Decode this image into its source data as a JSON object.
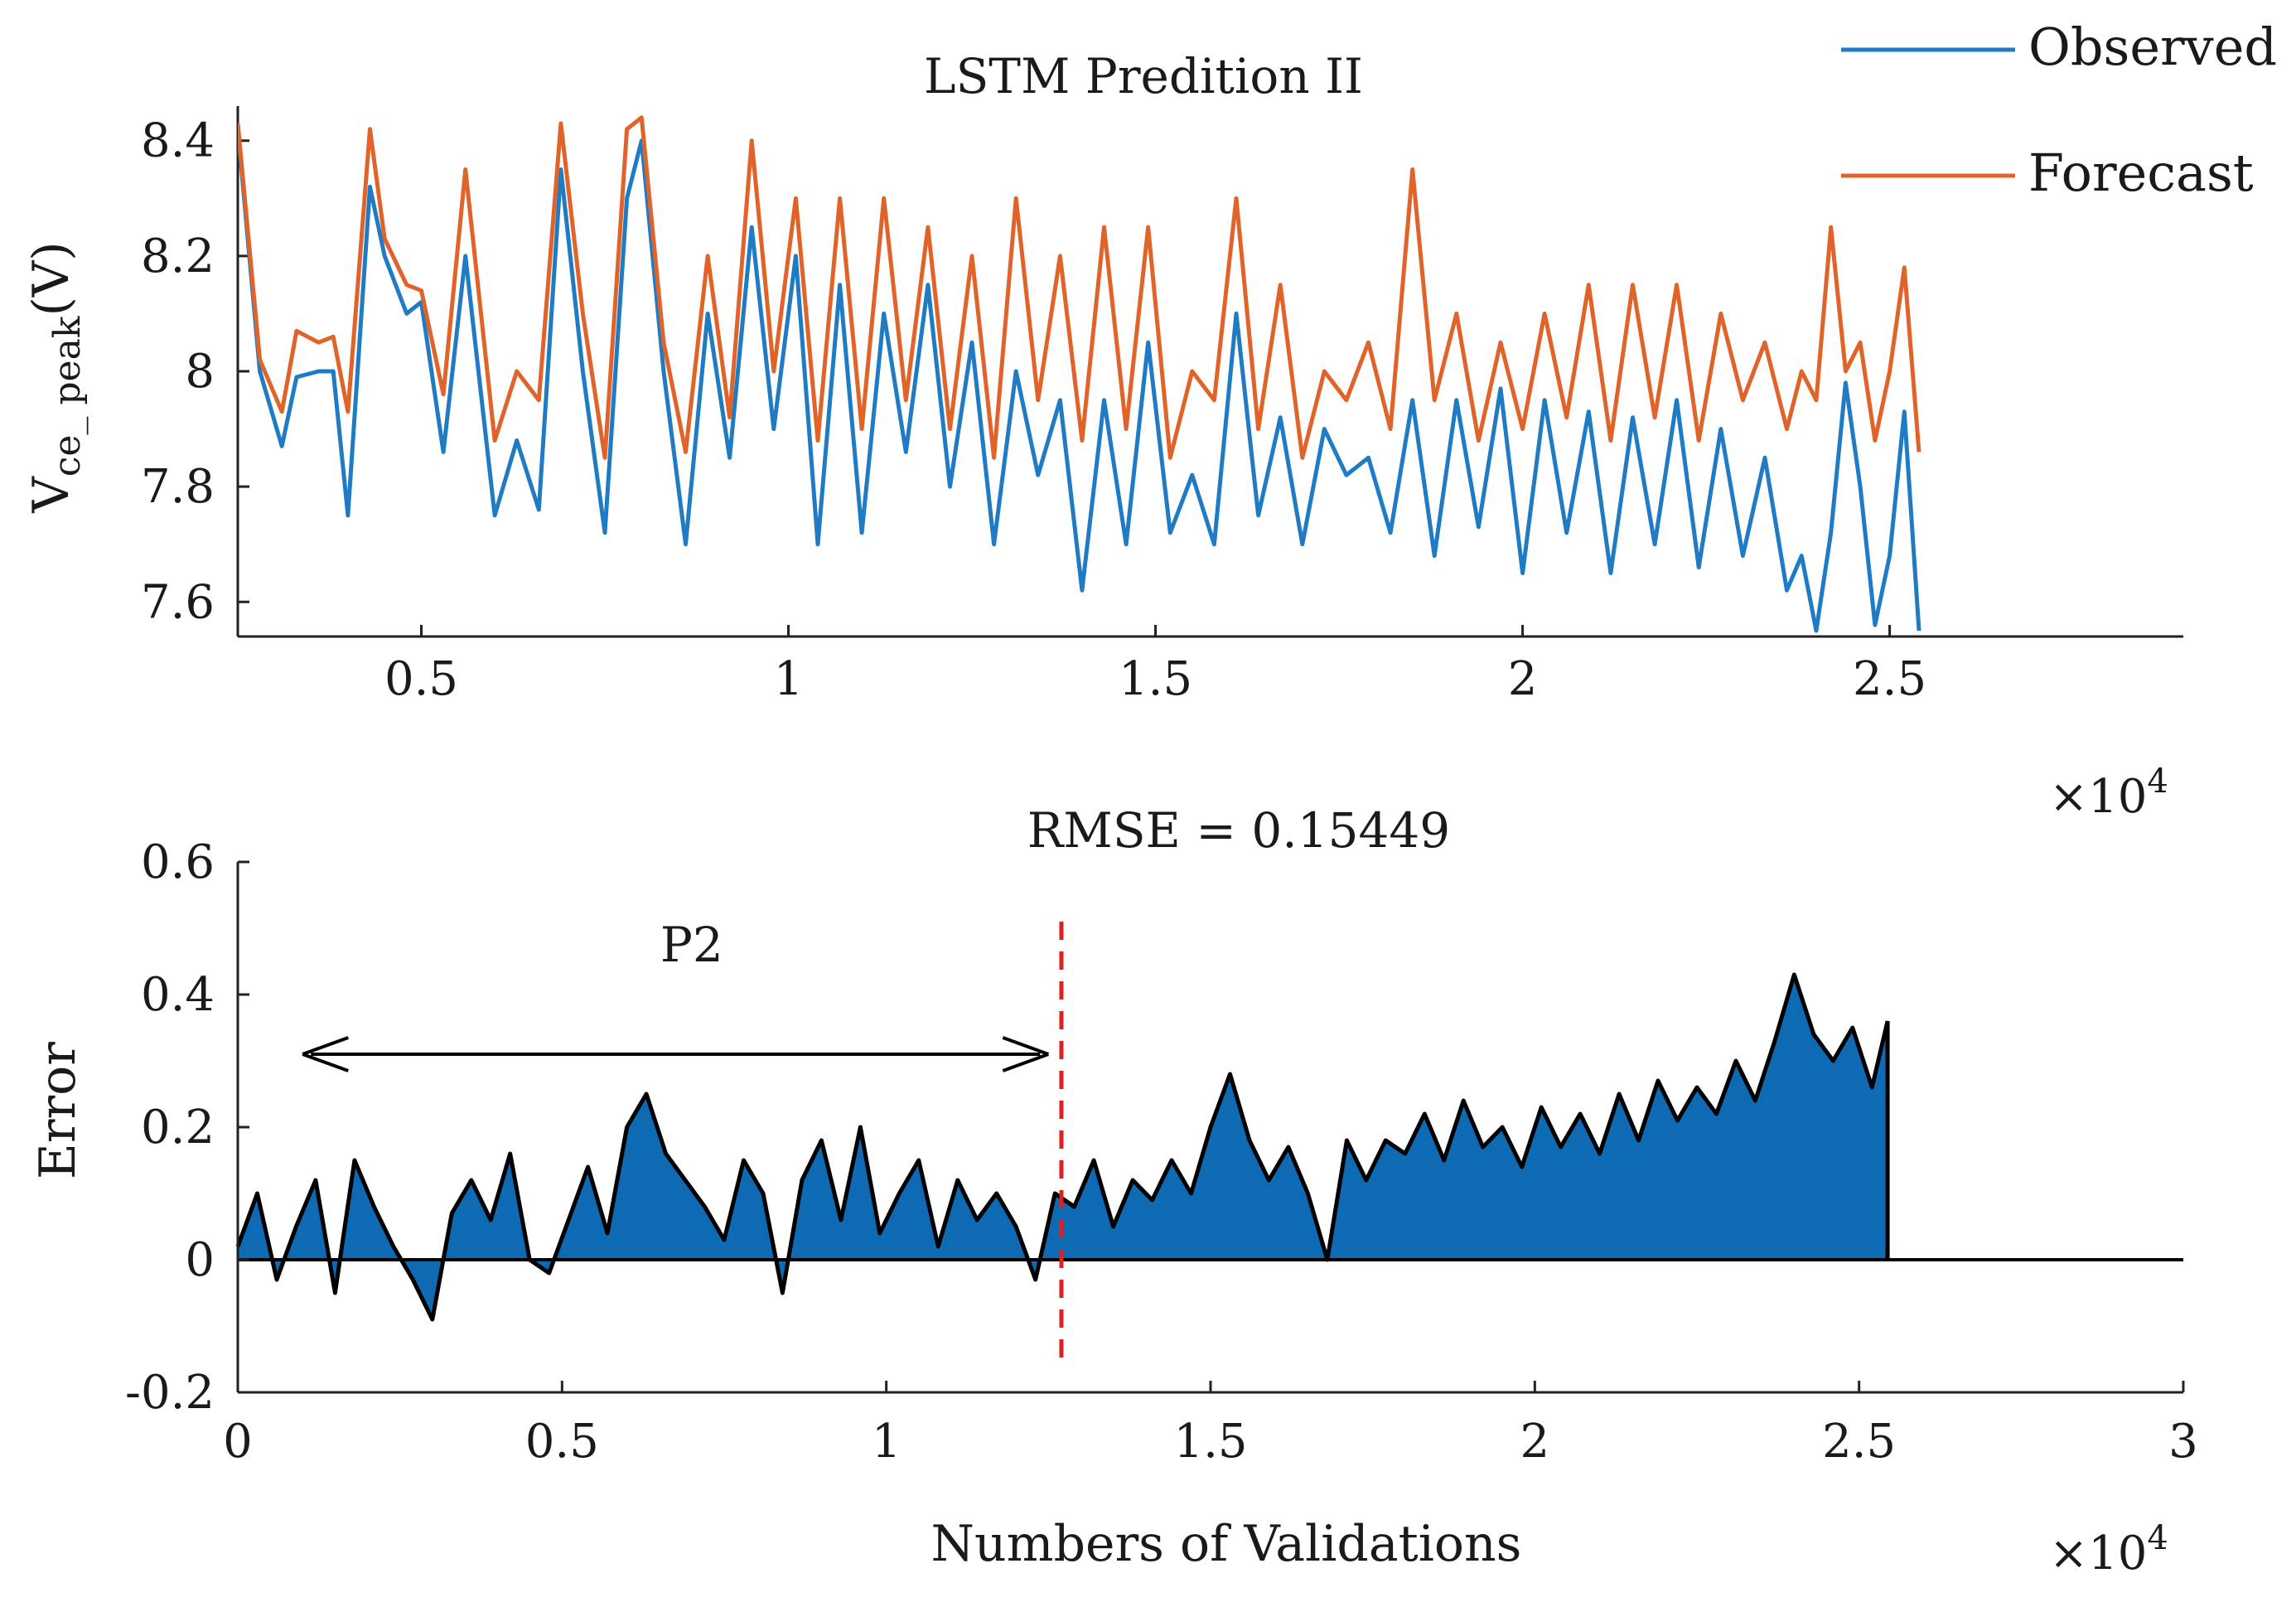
{
  "chart_data": [
    {
      "type": "line",
      "title": "LSTM Predition II",
      "xlabel": "",
      "ylabel": "V_ce_peak(V)",
      "ylabel_main": "V",
      "ylabel_sub": "ce_ peak",
      "ylabel_unit": "(V)",
      "xlim": [
        2500,
        29000
      ],
      "ylim": [
        7.54,
        8.46
      ],
      "xticks": [
        5000,
        10000,
        15000,
        20000,
        25000
      ],
      "xtick_labels": [
        "0.5",
        "1",
        "1.5",
        "2",
        "2.5"
      ],
      "yticks": [
        7.6,
        7.8,
        8.0,
        8.2,
        8.4
      ],
      "ytick_labels": [
        "7.6",
        "7.8",
        "8",
        "8.2",
        "8.4"
      ],
      "x_multiplier": "×10",
      "x_multiplier_exp": "4",
      "legend": [
        "Observed",
        "Forecast"
      ],
      "legend_position": "top-right",
      "colors": {
        "observed": "#1f7bc4",
        "forecast": "#e0632a"
      },
      "x": [
        2500,
        2800,
        3100,
        3300,
        3600,
        3800,
        4000,
        4300,
        4500,
        4800,
        5000,
        5300,
        5600,
        6000,
        6300,
        6600,
        6900,
        7200,
        7500,
        7800,
        8000,
        8300,
        8600,
        8900,
        9200,
        9500,
        9800,
        10100,
        10400,
        10700,
        11000,
        11300,
        11600,
        11900,
        12200,
        12500,
        12800,
        13100,
        13400,
        13700,
        14000,
        14300,
        14600,
        14900,
        15200,
        15500,
        15800,
        16100,
        16400,
        16700,
        17000,
        17300,
        17600,
        17900,
        18200,
        18500,
        18800,
        19100,
        19400,
        19700,
        20000,
        20300,
        20600,
        20900,
        21200,
        21500,
        21800,
        22100,
        22400,
        22700,
        23000,
        23300,
        23600,
        23800,
        24000,
        24200,
        24400,
        24600,
        24800,
        25000,
        25200,
        25400
      ],
      "series": [
        {
          "name": "Observed",
          "values": [
            8.42,
            8.0,
            7.87,
            7.99,
            8.0,
            8.0,
            7.75,
            8.32,
            8.2,
            8.1,
            8.12,
            7.86,
            8.2,
            7.75,
            7.88,
            7.76,
            8.35,
            8.0,
            7.72,
            8.3,
            8.4,
            8.0,
            7.7,
            8.1,
            7.85,
            8.25,
            7.9,
            8.2,
            7.7,
            8.15,
            7.72,
            8.1,
            7.86,
            8.15,
            7.8,
            8.05,
            7.7,
            8.0,
            7.82,
            7.95,
            7.62,
            7.95,
            7.7,
            8.05,
            7.72,
            7.82,
            7.7,
            8.1,
            7.75,
            7.92,
            7.7,
            7.9,
            7.82,
            7.85,
            7.72,
            7.95,
            7.68,
            7.95,
            7.73,
            7.97,
            7.65,
            7.95,
            7.72,
            7.93,
            7.65,
            7.92,
            7.7,
            7.95,
            7.66,
            7.9,
            7.68,
            7.85,
            7.62,
            7.68,
            7.55,
            7.72,
            7.98,
            7.8,
            7.56,
            7.68,
            7.93,
            7.55
          ]
        },
        {
          "name": "Forecast",
          "values": [
            8.43,
            8.02,
            7.93,
            8.07,
            8.05,
            8.06,
            7.93,
            8.42,
            8.23,
            8.15,
            8.14,
            7.96,
            8.35,
            7.88,
            8.0,
            7.95,
            8.43,
            8.1,
            7.85,
            8.42,
            8.44,
            8.05,
            7.86,
            8.2,
            7.92,
            8.4,
            8.0,
            8.3,
            7.88,
            8.3,
            7.9,
            8.3,
            7.95,
            8.25,
            7.9,
            8.2,
            7.85,
            8.3,
            7.95,
            8.2,
            7.88,
            8.25,
            7.9,
            8.25,
            7.85,
            8.0,
            7.95,
            8.3,
            7.9,
            8.15,
            7.85,
            8.0,
            7.95,
            8.05,
            7.9,
            8.35,
            7.95,
            8.1,
            7.88,
            8.05,
            7.9,
            8.1,
            7.92,
            8.15,
            7.88,
            8.15,
            7.92,
            8.15,
            7.88,
            8.1,
            7.95,
            8.05,
            7.9,
            8.0,
            7.95,
            8.25,
            8.0,
            8.05,
            7.88,
            8.0,
            8.18,
            7.86
          ]
        }
      ]
    },
    {
      "type": "area",
      "title": "RMSE = 0.15449",
      "xlabel": "Numbers of Validations",
      "ylabel": "Error",
      "xlim": [
        0,
        30000
      ],
      "ylim": [
        -0.2,
        0.6
      ],
      "xticks": [
        0,
        5000,
        10000,
        15000,
        20000,
        25000,
        30000
      ],
      "xtick_labels": [
        "0",
        "0.5",
        "1",
        "1.5",
        "2",
        "2.5",
        "3"
      ],
      "yticks": [
        -0.2,
        0,
        0.2,
        0.4,
        0.6
      ],
      "ytick_labels": [
        "-0.2",
        "0",
        "0.2",
        "0.4",
        "0.6"
      ],
      "x_multiplier": "×10",
      "x_multiplier_exp": "4",
      "fill_color": "#0f6ab4",
      "line_color": "#000000",
      "annotation": {
        "label": "P2",
        "arrow_x_start": 1000,
        "arrow_x_end": 12500,
        "arrow_y": 0.31,
        "label_x": 7000,
        "label_y": 0.45
      },
      "divider": {
        "x": 12700,
        "y_start": -0.16,
        "y_end": 0.51,
        "color": "#e02020"
      },
      "x": [
        0,
        300,
        600,
        900,
        1200,
        1500,
        1800,
        2100,
        2400,
        2700,
        3000,
        3300,
        3600,
        3900,
        4200,
        4500,
        4800,
        5100,
        5400,
        5700,
        6000,
        6300,
        6600,
        6900,
        7200,
        7500,
        7800,
        8100,
        8400,
        8700,
        9000,
        9300,
        9600,
        9900,
        10200,
        10500,
        10800,
        11100,
        11400,
        11700,
        12000,
        12300,
        12600,
        12900,
        13200,
        13500,
        13800,
        14100,
        14400,
        14700,
        15000,
        15300,
        15600,
        15900,
        16200,
        16500,
        16800,
        17100,
        17400,
        17700,
        18000,
        18300,
        18600,
        18900,
        19200,
        19500,
        19800,
        20100,
        20400,
        20700,
        21000,
        21300,
        21600,
        21900,
        22200,
        22500,
        22800,
        23100,
        23400,
        23700,
        24000,
        24300,
        24600,
        24900,
        25200,
        25440
      ],
      "values": [
        0.02,
        0.1,
        -0.03,
        0.05,
        0.12,
        -0.05,
        0.15,
        0.08,
        0.02,
        -0.03,
        -0.09,
        0.07,
        0.12,
        0.06,
        0.16,
        0.0,
        -0.02,
        0.06,
        0.14,
        0.04,
        0.2,
        0.25,
        0.16,
        0.12,
        0.08,
        0.03,
        0.15,
        0.1,
        -0.05,
        0.12,
        0.18,
        0.06,
        0.2,
        0.04,
        0.1,
        0.15,
        0.02,
        0.12,
        0.06,
        0.1,
        0.05,
        -0.03,
        0.1,
        0.08,
        0.15,
        0.05,
        0.12,
        0.09,
        0.15,
        0.1,
        0.2,
        0.28,
        0.18,
        0.12,
        0.17,
        0.1,
        0.0,
        0.18,
        0.12,
        0.18,
        0.16,
        0.22,
        0.15,
        0.24,
        0.17,
        0.2,
        0.14,
        0.23,
        0.17,
        0.22,
        0.16,
        0.25,
        0.18,
        0.27,
        0.21,
        0.26,
        0.22,
        0.3,
        0.24,
        0.33,
        0.43,
        0.34,
        0.3,
        0.35,
        0.26,
        0.36
      ]
    }
  ]
}
